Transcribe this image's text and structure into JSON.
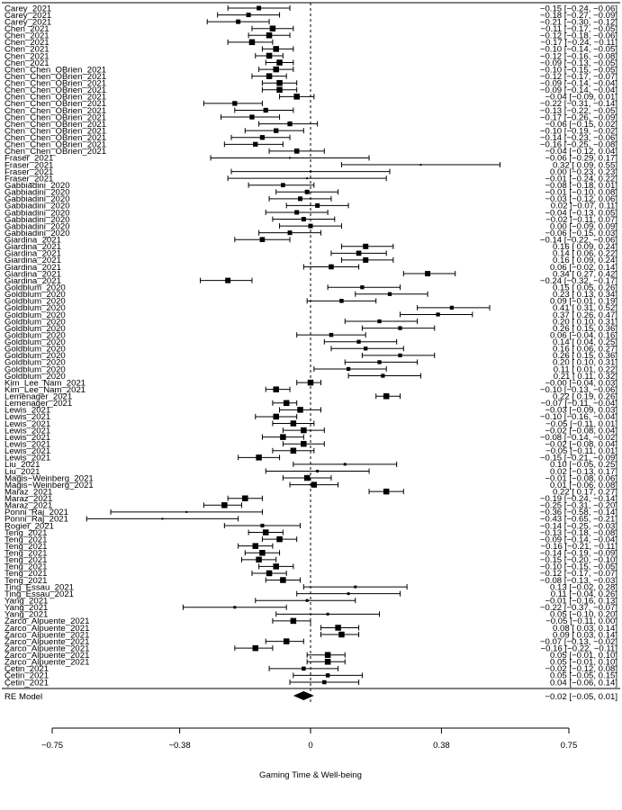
{
  "chart_data": {
    "type": "forest",
    "xlabel": "Gaming Time & Well-being",
    "xlim": [
      -0.75,
      0.75
    ],
    "xticks": [
      -0.75,
      -0.38,
      0,
      0.38,
      0.75
    ],
    "xtick_labels": [
      "−0.75",
      "−0.38",
      "0",
      "0.38",
      "0.75"
    ],
    "reference_line": 0,
    "studies": [
      {
        "label": "Carey_2021",
        "est": -0.15,
        "lo": -0.24,
        "hi": -0.06,
        "text": "−0.15 [−0.24, −0.06]"
      },
      {
        "label": "Carey_2021",
        "est": -0.18,
        "lo": -0.27,
        "hi": -0.09,
        "text": "−0.18 [−0.27, −0.09]"
      },
      {
        "label": "Carey_2021",
        "est": -0.21,
        "lo": -0.3,
        "hi": -0.12,
        "text": "−0.21 [−0.30, −0.12]"
      },
      {
        "label": "Chen_2021",
        "est": -0.11,
        "lo": -0.17,
        "hi": -0.05,
        "text": "−0.11 [−0.17, −0.05]"
      },
      {
        "label": "Chen_2021",
        "est": -0.12,
        "lo": -0.18,
        "hi": -0.06,
        "text": "−0.12 [−0.18, −0.06]"
      },
      {
        "label": "Chen_2021",
        "est": -0.17,
        "lo": -0.24,
        "hi": -0.11,
        "text": "−0.17 [−0.24, −0.11]"
      },
      {
        "label": "Chen_2021",
        "est": -0.1,
        "lo": -0.14,
        "hi": -0.05,
        "text": "−0.10 [−0.14, −0.05]"
      },
      {
        "label": "Chen_2021",
        "est": -0.12,
        "lo": -0.16,
        "hi": -0.08,
        "text": "−0.12 [−0.16, −0.08]"
      },
      {
        "label": "Chen_2021",
        "est": -0.09,
        "lo": -0.13,
        "hi": -0.05,
        "text": "−0.09 [−0.13, −0.05]"
      },
      {
        "label": "Chen_Chen_OBrien_2021",
        "est": -0.1,
        "lo": -0.15,
        "hi": -0.05,
        "text": "−0.10 [−0.15, −0.05]"
      },
      {
        "label": "Chen_Chen_OBrien_2021",
        "est": -0.12,
        "lo": -0.17,
        "hi": -0.07,
        "text": "−0.12 [−0.17, −0.07]"
      },
      {
        "label": "Chen_Chen_OBrien_2021",
        "est": -0.09,
        "lo": -0.14,
        "hi": -0.04,
        "text": "−0.09 [−0.14, −0.04]"
      },
      {
        "label": "Chen_Chen_OBrien_2021",
        "est": -0.09,
        "lo": -0.14,
        "hi": -0.04,
        "text": "−0.09 [−0.14, −0.04]"
      },
      {
        "label": "Chen_Chen_OBrien_2021",
        "est": -0.04,
        "lo": -0.09,
        "hi": 0.01,
        "text": "−0.04 [−0.09,  0.01]"
      },
      {
        "label": "Chen_Chen_OBrien_2021",
        "est": -0.22,
        "lo": -0.31,
        "hi": -0.14,
        "text": "−0.22 [−0.31, −0.14]"
      },
      {
        "label": "Chen_Chen_OBrien_2021",
        "est": -0.13,
        "lo": -0.22,
        "hi": -0.05,
        "text": "−0.13 [−0.22, −0.05]"
      },
      {
        "label": "Chen_Chen_OBrien_2021",
        "est": -0.17,
        "lo": -0.26,
        "hi": -0.09,
        "text": "−0.17 [−0.26, −0.09]"
      },
      {
        "label": "Chen_Chen_OBrien_2021",
        "est": -0.06,
        "lo": -0.15,
        "hi": 0.02,
        "text": "−0.06 [−0.15,  0.02]"
      },
      {
        "label": "Chen_Chen_OBrien_2021",
        "est": -0.1,
        "lo": -0.19,
        "hi": -0.02,
        "text": "−0.10 [−0.19, −0.02]"
      },
      {
        "label": "Chen_Chen_OBrien_2021",
        "est": -0.14,
        "lo": -0.23,
        "hi": -0.06,
        "text": "−0.14 [−0.23, −0.06]"
      },
      {
        "label": "Chen_Chen_OBrien_2021",
        "est": -0.16,
        "lo": -0.25,
        "hi": -0.08,
        "text": "−0.16 [−0.25, −0.08]"
      },
      {
        "label": "Chen_Chen_OBrien_2021",
        "est": -0.04,
        "lo": -0.12,
        "hi": 0.04,
        "text": "−0.04 [−0.12,  0.04]"
      },
      {
        "label": "Fraser_2021",
        "est": -0.06,
        "lo": -0.29,
        "hi": 0.17,
        "text": "−0.06 [−0.29,  0.17]"
      },
      {
        "label": "Fraser_2021",
        "est": 0.32,
        "lo": 0.09,
        "hi": 0.55,
        "text": "0.32 [ 0.09,  0.55]"
      },
      {
        "label": "Fraser_2021",
        "est": 0.0,
        "lo": -0.23,
        "hi": 0.23,
        "text": "0.00 [−0.23,  0.23]"
      },
      {
        "label": "Fraser_2021",
        "est": -0.01,
        "lo": -0.24,
        "hi": 0.22,
        "text": "−0.01 [−0.24,  0.22]"
      },
      {
        "label": "Gabbiadini_2020",
        "est": -0.08,
        "lo": -0.18,
        "hi": 0.01,
        "text": "−0.08 [−0.18,  0.01]"
      },
      {
        "label": "Gabbiadini_2020",
        "est": -0.01,
        "lo": -0.1,
        "hi": 0.08,
        "text": "−0.01 [−0.10,  0.08]"
      },
      {
        "label": "Gabbiadini_2020",
        "est": -0.03,
        "lo": -0.12,
        "hi": 0.06,
        "text": "−0.03 [−0.12,  0.06]"
      },
      {
        "label": "Gabbiadini_2020",
        "est": 0.02,
        "lo": -0.07,
        "hi": 0.11,
        "text": "0.02 [−0.07,  0.11]"
      },
      {
        "label": "Gabbiadini_2020",
        "est": -0.04,
        "lo": -0.13,
        "hi": 0.05,
        "text": "−0.04 [−0.13,  0.05]"
      },
      {
        "label": "Gabbiadini_2020",
        "est": -0.02,
        "lo": -0.11,
        "hi": 0.07,
        "text": "−0.02 [−0.11,  0.07]"
      },
      {
        "label": "Gabbiadini_2020",
        "est": 0.0,
        "lo": -0.09,
        "hi": 0.09,
        "text": "0.00 [−0.09,  0.09]"
      },
      {
        "label": "Gabbiadini_2020",
        "est": -0.06,
        "lo": -0.15,
        "hi": 0.03,
        "text": "−0.06 [−0.15,  0.03]"
      },
      {
        "label": "Giardina_2021",
        "est": -0.14,
        "lo": -0.22,
        "hi": -0.06,
        "text": "−0.14 [−0.22, −0.06]"
      },
      {
        "label": "Giardina_2021",
        "est": 0.16,
        "lo": 0.09,
        "hi": 0.24,
        "text": "0.16 [ 0.09,  0.24]"
      },
      {
        "label": "Giardina_2021",
        "est": 0.14,
        "lo": 0.06,
        "hi": 0.22,
        "text": "0.14 [ 0.06,  0.22]"
      },
      {
        "label": "Giardina_2021",
        "est": 0.16,
        "lo": 0.09,
        "hi": 0.24,
        "text": "0.16 [ 0.09,  0.24]"
      },
      {
        "label": "Giardina_2021",
        "est": 0.06,
        "lo": -0.02,
        "hi": 0.14,
        "text": "0.06 [−0.02,  0.14]"
      },
      {
        "label": "Giardina_2021",
        "est": 0.34,
        "lo": 0.27,
        "hi": 0.42,
        "text": "0.34 [ 0.27,  0.42]"
      },
      {
        "label": "Giardina_2021",
        "est": -0.24,
        "lo": -0.32,
        "hi": -0.17,
        "text": "−0.24 [−0.32, −0.17]"
      },
      {
        "label": "Goldblum_2020",
        "est": 0.15,
        "lo": 0.05,
        "hi": 0.26,
        "text": "0.15 [ 0.05,  0.26]"
      },
      {
        "label": "Goldblum_2020",
        "est": 0.23,
        "lo": 0.13,
        "hi": 0.34,
        "text": "0.23 [ 0.13,  0.34]"
      },
      {
        "label": "Goldblum_2020",
        "est": 0.09,
        "lo": -0.01,
        "hi": 0.19,
        "text": "0.09 [−0.01,  0.19]"
      },
      {
        "label": "Goldblum_2020",
        "est": 0.41,
        "lo": 0.31,
        "hi": 0.52,
        "text": "0.41 [ 0.31,  0.52]"
      },
      {
        "label": "Goldblum_2020",
        "est": 0.37,
        "lo": 0.26,
        "hi": 0.47,
        "text": "0.37 [ 0.26,  0.47]"
      },
      {
        "label": "Goldblum_2020",
        "est": 0.2,
        "lo": 0.1,
        "hi": 0.31,
        "text": "0.20 [ 0.10,  0.31]"
      },
      {
        "label": "Goldblum_2020",
        "est": 0.26,
        "lo": 0.15,
        "hi": 0.36,
        "text": "0.26 [ 0.15,  0.36]"
      },
      {
        "label": "Goldblum_2020",
        "est": 0.06,
        "lo": -0.04,
        "hi": 0.16,
        "text": "0.06 [−0.04,  0.16]"
      },
      {
        "label": "Goldblum_2020",
        "est": 0.14,
        "lo": 0.04,
        "hi": 0.25,
        "text": "0.14 [ 0.04,  0.25]"
      },
      {
        "label": "Goldblum_2020",
        "est": 0.16,
        "lo": 0.06,
        "hi": 0.27,
        "text": "0.16 [ 0.06,  0.27]"
      },
      {
        "label": "Goldblum_2020",
        "est": 0.26,
        "lo": 0.15,
        "hi": 0.36,
        "text": "0.26 [ 0.15,  0.36]"
      },
      {
        "label": "Goldblum_2020",
        "est": 0.2,
        "lo": 0.1,
        "hi": 0.31,
        "text": "0.20 [ 0.10,  0.31]"
      },
      {
        "label": "Goldblum_2020",
        "est": 0.11,
        "lo": 0.01,
        "hi": 0.22,
        "text": "0.11 [ 0.01,  0.22]"
      },
      {
        "label": "Goldblum_2020",
        "est": 0.21,
        "lo": 0.11,
        "hi": 0.32,
        "text": "0.21 [ 0.11,  0.32]"
      },
      {
        "label": "Kim_Lee_Nam_2021",
        "est": -0.0,
        "lo": -0.04,
        "hi": 0.03,
        "text": "−0.00 [−0.04,  0.03]"
      },
      {
        "label": "Kim_Lee_Nam_2021",
        "est": -0.1,
        "lo": -0.13,
        "hi": -0.06,
        "text": "−0.10 [−0.13, −0.06]"
      },
      {
        "label": "Lemenager_2021",
        "est": 0.22,
        "lo": 0.19,
        "hi": 0.26,
        "text": "0.22 [ 0.19,  0.26]"
      },
      {
        "label": "Lemenager_2021",
        "est": -0.07,
        "lo": -0.11,
        "hi": -0.04,
        "text": "−0.07 [−0.11, −0.04]"
      },
      {
        "label": "Lewis_2021",
        "est": -0.03,
        "lo": -0.09,
        "hi": 0.03,
        "text": "−0.03 [−0.09,  0.03]"
      },
      {
        "label": "Lewis_2021",
        "est": -0.1,
        "lo": -0.16,
        "hi": -0.04,
        "text": "−0.10 [−0.16, −0.04]"
      },
      {
        "label": "Lewis_2021",
        "est": -0.05,
        "lo": -0.11,
        "hi": 0.01,
        "text": "−0.05 [−0.11,  0.01]"
      },
      {
        "label": "Lewis_2021",
        "est": -0.02,
        "lo": -0.08,
        "hi": 0.04,
        "text": "−0.02 [−0.08,  0.04]"
      },
      {
        "label": "Lewis_2021",
        "est": -0.08,
        "lo": -0.14,
        "hi": -0.02,
        "text": "−0.08 [−0.14, −0.02]"
      },
      {
        "label": "Lewis_2021",
        "est": -0.02,
        "lo": -0.08,
        "hi": 0.04,
        "text": "−0.02 [−0.08,  0.04]"
      },
      {
        "label": "Lewis_2021",
        "est": -0.05,
        "lo": -0.11,
        "hi": 0.01,
        "text": "−0.05 [−0.11,  0.01]"
      },
      {
        "label": "Lewis_2021",
        "est": -0.15,
        "lo": -0.21,
        "hi": -0.09,
        "text": "−0.15 [−0.21, −0.09]"
      },
      {
        "label": "Liu_2021",
        "est": 0.1,
        "lo": -0.05,
        "hi": 0.25,
        "text": "0.10 [−0.05,  0.25]"
      },
      {
        "label": "Liu_2021",
        "est": 0.02,
        "lo": -0.13,
        "hi": 0.17,
        "text": "0.02 [−0.13,  0.17]"
      },
      {
        "label": "Magis−Weinberg_2021",
        "est": -0.01,
        "lo": -0.08,
        "hi": 0.06,
        "text": "−0.01 [−0.08,  0.06]"
      },
      {
        "label": "Magis−Weinberg_2021",
        "est": 0.01,
        "lo": -0.06,
        "hi": 0.08,
        "text": "0.01 [−0.06,  0.08]"
      },
      {
        "label": "Maraz_2021",
        "est": 0.22,
        "lo": 0.17,
        "hi": 0.27,
        "text": "0.22 [ 0.17,  0.27]"
      },
      {
        "label": "Maraz_2021",
        "est": -0.19,
        "lo": -0.24,
        "hi": -0.14,
        "text": "−0.19 [−0.24, −0.14]"
      },
      {
        "label": "Maraz_2021",
        "est": -0.25,
        "lo": -0.31,
        "hi": -0.2,
        "text": "−0.25 [−0.31, −0.20]"
      },
      {
        "label": "Ponni_Raj_2021",
        "est": -0.36,
        "lo": -0.58,
        "hi": -0.14,
        "text": "−0.36 [−0.58, −0.14]"
      },
      {
        "label": "Ponni_Raj_2021",
        "est": -0.43,
        "lo": -0.65,
        "hi": -0.21,
        "text": "−0.43 [−0.65, −0.21]"
      },
      {
        "label": "Rogier_2021",
        "est": -0.14,
        "lo": -0.25,
        "hi": -0.03,
        "text": "−0.14 [−0.25, −0.03]"
      },
      {
        "label": "Teng_2021",
        "est": -0.13,
        "lo": -0.18,
        "hi": -0.08,
        "text": "−0.13 [−0.18, −0.08]"
      },
      {
        "label": "Teng_2021",
        "est": -0.09,
        "lo": -0.14,
        "hi": -0.04,
        "text": "−0.09 [−0.14, −0.04]"
      },
      {
        "label": "Teng_2021",
        "est": -0.16,
        "lo": -0.21,
        "hi": -0.11,
        "text": "−0.16 [−0.21, −0.11]"
      },
      {
        "label": "Teng_2021",
        "est": -0.14,
        "lo": -0.19,
        "hi": -0.09,
        "text": "−0.14 [−0.19, −0.09]"
      },
      {
        "label": "Teng_2021",
        "est": -0.15,
        "lo": -0.2,
        "hi": -0.1,
        "text": "−0.15 [−0.20, −0.10]"
      },
      {
        "label": "Teng_2021",
        "est": -0.1,
        "lo": -0.15,
        "hi": -0.05,
        "text": "−0.10 [−0.15, −0.05]"
      },
      {
        "label": "Teng_2021",
        "est": -0.12,
        "lo": -0.17,
        "hi": -0.07,
        "text": "−0.12 [−0.17, −0.07]"
      },
      {
        "label": "Teng_2021",
        "est": -0.08,
        "lo": -0.13,
        "hi": -0.03,
        "text": "−0.08 [−0.13, −0.03]"
      },
      {
        "label": "Ting_Essau_2021",
        "est": 0.13,
        "lo": -0.02,
        "hi": 0.28,
        "text": "0.13 [−0.02,  0.28]"
      },
      {
        "label": "Ting_Essau_2021",
        "est": 0.11,
        "lo": -0.04,
        "hi": 0.26,
        "text": "0.11 [−0.04,  0.26]"
      },
      {
        "label": "Yang_2021",
        "est": -0.01,
        "lo": -0.16,
        "hi": 0.13,
        "text": "−0.01 [−0.16,  0.13]"
      },
      {
        "label": "Yang_2021",
        "est": -0.22,
        "lo": -0.37,
        "hi": -0.07,
        "text": "−0.22 [−0.37, −0.07]"
      },
      {
        "label": "Yang_2021",
        "est": 0.05,
        "lo": -0.1,
        "hi": 0.2,
        "text": "0.05 [−0.10,  0.20]"
      },
      {
        "label": "Zarco_Alpuente_2021",
        "est": -0.05,
        "lo": -0.11,
        "hi": 0.0,
        "text": "−0.05 [−0.11,  0.00]"
      },
      {
        "label": "Zarco_Alpuente_2021",
        "est": 0.08,
        "lo": 0.03,
        "hi": 0.14,
        "text": "0.08 [ 0.03,  0.14]"
      },
      {
        "label": "Zarco_Alpuente_2021",
        "est": 0.09,
        "lo": 0.03,
        "hi": 0.14,
        "text": "0.09 [ 0.03,  0.14]"
      },
      {
        "label": "Zarco_Alpuente_2021",
        "est": -0.07,
        "lo": -0.13,
        "hi": -0.02,
        "text": "−0.07 [−0.13, −0.02]"
      },
      {
        "label": "Zarco_Alpuente_2021",
        "est": -0.16,
        "lo": -0.22,
        "hi": -0.11,
        "text": "−0.16 [−0.22, −0.11]"
      },
      {
        "label": "Zarco_Alpuente_2021",
        "est": 0.05,
        "lo": -0.01,
        "hi": 0.1,
        "text": "0.05 [−0.01,  0.10]"
      },
      {
        "label": "Zarco_Alpuente_2021",
        "est": 0.05,
        "lo": -0.01,
        "hi": 0.1,
        "text": "0.05 [−0.01,  0.10]"
      },
      {
        "label": "Çetin_2021",
        "est": -0.02,
        "lo": -0.12,
        "hi": 0.08,
        "text": "−0.02 [−0.12,  0.08]"
      },
      {
        "label": "Çetin_2021",
        "est": 0.05,
        "lo": -0.05,
        "hi": 0.15,
        "text": "0.05 [−0.05,  0.15]"
      },
      {
        "label": "Çetin_2021",
        "est": 0.04,
        "lo": -0.06,
        "hi": 0.14,
        "text": "0.04 [−0.06,  0.14]"
      }
    ],
    "summary": {
      "label": "RE Model",
      "est": -0.02,
      "lo": -0.05,
      "hi": 0.01,
      "text": "−0.02 [−0.05,  0.01]"
    }
  }
}
